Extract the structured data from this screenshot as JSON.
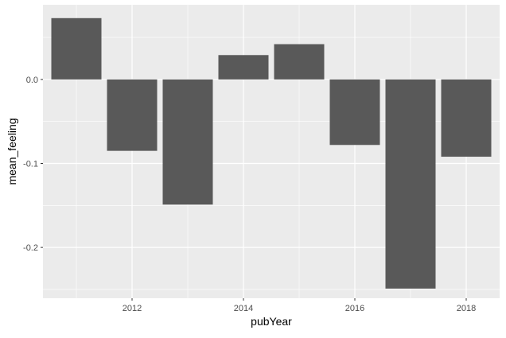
{
  "chart_data": {
    "type": "bar",
    "title": "",
    "xlabel": "pubYear",
    "ylabel": "mean_feeling",
    "x": [
      2011,
      2012,
      2013,
      2014,
      2015,
      2016,
      2017,
      2018
    ],
    "values": [
      0.073,
      -0.085,
      -0.149,
      0.029,
      0.042,
      -0.078,
      -0.249,
      -0.092
    ],
    "xlim": [
      2010.4,
      2018.6
    ],
    "ylim": [
      -0.2605,
      0.0889
    ],
    "x_ticks": [
      2012,
      2014,
      2016,
      2018
    ],
    "x_tick_labels": [
      "2012",
      "2014",
      "2016",
      "2018"
    ],
    "y_ticks": [
      0.0,
      -0.1,
      -0.2
    ],
    "y_tick_labels": [
      "0.0",
      "-0.1",
      "-0.2"
    ],
    "grid": true,
    "legend": "none",
    "colors": {
      "panel": "#EBEBEB",
      "grid_major": "#FFFFFF",
      "bar": "#595959",
      "tick_text": "#4D4D4D",
      "axis_title": "#000000",
      "tick_mark": "#333333"
    }
  }
}
